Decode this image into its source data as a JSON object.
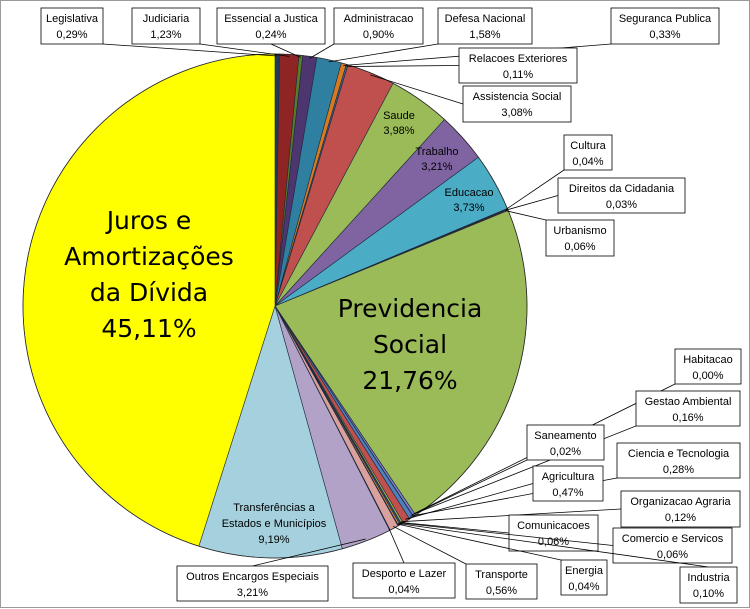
{
  "chart_data": {
    "type": "pie",
    "title": "",
    "slices": [
      {
        "label": "Legislativa",
        "pct_text": "0,29%",
        "value": 0.29,
        "color": "#1f3b5c"
      },
      {
        "label": "Judiciaria",
        "pct_text": "1,23%",
        "value": 1.23,
        "color": "#8e2424"
      },
      {
        "label": "Essencial a Justica",
        "pct_text": "0,24%",
        "value": 0.24,
        "color": "#5a7a2a"
      },
      {
        "label": "Administracao",
        "pct_text": "0,90%",
        "value": 0.9,
        "color": "#4d3570"
      },
      {
        "label": "Defesa Nacional",
        "pct_text": "1,58%",
        "value": 1.58,
        "color": "#2e7fa0"
      },
      {
        "label": "Seguranca Publica",
        "pct_text": "0,33%",
        "value": 0.33,
        "color": "#d97a20"
      },
      {
        "label": "Relacoes Exteriores",
        "pct_text": "0,11%",
        "value": 0.11,
        "color": "#3a5f8f"
      },
      {
        "label": "Assistencia Social",
        "pct_text": "3,08%",
        "value": 3.08,
        "color": "#c0504d"
      },
      {
        "label": "Saude",
        "pct_text": "3,98%",
        "value": 3.98,
        "color": "#9bbb59"
      },
      {
        "label": "Trabalho",
        "pct_text": "3,21%",
        "value": 3.21,
        "color": "#8064a2"
      },
      {
        "label": "Educacao",
        "pct_text": "3,73%",
        "value": 3.73,
        "color": "#4bacc6"
      },
      {
        "label": "Cultura",
        "pct_text": "0,04%",
        "value": 0.04,
        "color": "#f79646"
      },
      {
        "label": "Direitos da Cidadania",
        "pct_text": "0,03%",
        "value": 0.03,
        "color": "#2c4d75"
      },
      {
        "label": "Urbanismo",
        "pct_text": "0,06%",
        "value": 0.06,
        "color": "#772c2a"
      },
      {
        "label": "Previdencia Social",
        "pct_text": "21,76%",
        "value": 21.76,
        "color": "#9bbb59"
      },
      {
        "label": "Habitacao",
        "pct_text": "0,00%",
        "value": 0.0,
        "color": "#5f497a"
      },
      {
        "label": "Gestao Ambiental",
        "pct_text": "0,16%",
        "value": 0.16,
        "color": "#7f7fd5"
      },
      {
        "label": "Saneamento",
        "pct_text": "0,02%",
        "value": 0.02,
        "color": "#f79646"
      },
      {
        "label": "Ciencia e Tecnologia",
        "pct_text": "0,28%",
        "value": 0.28,
        "color": "#4f81bd"
      },
      {
        "label": "Agricultura",
        "pct_text": "0,47%",
        "value": 0.47,
        "color": "#c0504d"
      },
      {
        "label": "Organizacao Agraria",
        "pct_text": "0,12%",
        "value": 0.12,
        "color": "#9bbb59"
      },
      {
        "label": "Comunicacoes",
        "pct_text": "0,06%",
        "value": 0.06,
        "color": "#8064a2"
      },
      {
        "label": "Comercio e Servicos",
        "pct_text": "0,06%",
        "value": 0.06,
        "color": "#4bacc6"
      },
      {
        "label": "Industria",
        "pct_text": "0,10%",
        "value": 0.1,
        "color": "#f79646"
      },
      {
        "label": "Energia",
        "pct_text": "0,04%",
        "value": 0.04,
        "color": "#2c4d75"
      },
      {
        "label": "Transporte",
        "pct_text": "0,56%",
        "value": 0.56,
        "color": "#d9a09e"
      },
      {
        "label": "Desporto e Lazer",
        "pct_text": "0,04%",
        "value": 0.04,
        "color": "#b9cd96"
      },
      {
        "label": "Outros Encargos Especiais",
        "pct_text": "3,21%",
        "value": 3.21,
        "color": "#b2a2c7"
      },
      {
        "label": "Transferências a Estados e Municípios",
        "pct_text": "9,19%",
        "value": 9.19,
        "color": "#a5d0de"
      },
      {
        "label": "Juros e Amortizações da Dívida",
        "pct_text": "45,11%",
        "value": 45.11,
        "color": "#ffff00"
      }
    ]
  }
}
